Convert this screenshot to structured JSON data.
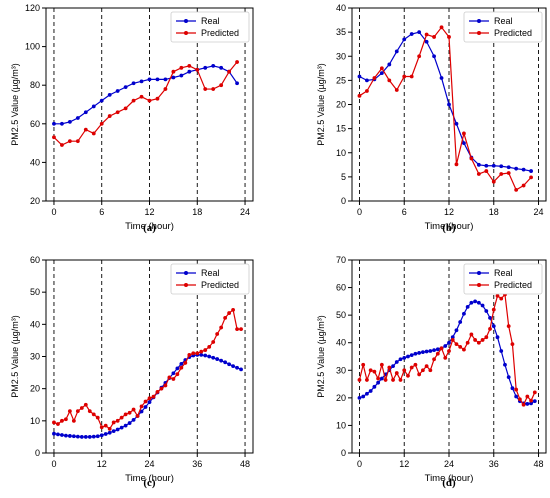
{
  "chart_data": [
    {
      "type": "line",
      "panel_label": "(a)",
      "xlabel": "Time (hour)",
      "ylabel": "PM2.5 Value (µg/m³)",
      "xlim": [
        -1,
        25
      ],
      "ylim": [
        20,
        120
      ],
      "xticks": [
        0,
        6,
        12,
        18,
        24
      ],
      "yticks": [
        20,
        40,
        60,
        80,
        100,
        120
      ],
      "vlines": [
        0,
        6,
        12,
        18,
        24
      ],
      "legend_position": "top-right",
      "series": [
        {
          "name": "Real",
          "color": "#0000cc",
          "x": [
            0,
            1,
            2,
            3,
            4,
            5,
            6,
            7,
            8,
            9,
            10,
            11,
            12,
            13,
            14,
            15,
            16,
            17,
            18,
            19,
            20,
            21,
            22,
            23
          ],
          "values": [
            60,
            60,
            61,
            63,
            66,
            69,
            72,
            75,
            77,
            79,
            81,
            82,
            83,
            83,
            83,
            84,
            85,
            87,
            88,
            89,
            90,
            89,
            87,
            81
          ]
        },
        {
          "name": "Predicted",
          "color": "#dd0000",
          "x": [
            0,
            1,
            2,
            3,
            4,
            5,
            6,
            7,
            8,
            9,
            10,
            11,
            12,
            13,
            14,
            15,
            16,
            17,
            18,
            19,
            20,
            21,
            22,
            23
          ],
          "values": [
            53,
            49,
            51,
            51,
            57,
            55,
            60,
            64,
            66,
            68,
            72,
            74,
            72,
            73,
            78,
            87,
            89,
            90,
            88,
            78,
            78,
            80,
            87,
            92
          ]
        }
      ]
    },
    {
      "type": "line",
      "panel_label": "(b)",
      "xlabel": "Time (hour)",
      "ylabel": "PM2.5 Value (µg/m³)",
      "xlim": [
        -1,
        25
      ],
      "ylim": [
        0,
        40
      ],
      "xticks": [
        0,
        6,
        12,
        18,
        24
      ],
      "yticks": [
        0,
        5,
        10,
        15,
        20,
        25,
        30,
        35,
        40
      ],
      "vlines": [
        0,
        6,
        12,
        18,
        24
      ],
      "legend_position": "top-right",
      "series": [
        {
          "name": "Real",
          "color": "#0000cc",
          "x": [
            0,
            1,
            2,
            3,
            4,
            5,
            6,
            7,
            8,
            9,
            10,
            11,
            12,
            13,
            14,
            15,
            16,
            17,
            18,
            19,
            20,
            21,
            22,
            23
          ],
          "values": [
            25.8,
            25,
            25.2,
            26.5,
            28.3,
            31,
            33.5,
            34.6,
            35,
            33,
            30,
            25.5,
            20,
            16,
            12,
            9,
            7.5,
            7.3,
            7.3,
            7.2,
            7,
            6.7,
            6.5,
            6.2
          ]
        },
        {
          "name": "Predicted",
          "color": "#dd0000",
          "x": [
            0,
            1,
            2,
            3,
            4,
            5,
            6,
            7,
            8,
            9,
            10,
            11,
            12,
            13,
            14,
            15,
            16,
            17,
            18,
            19,
            20,
            21,
            22,
            23
          ],
          "values": [
            21.8,
            22.8,
            25.5,
            27.5,
            25,
            23,
            25.8,
            25.8,
            30,
            34.5,
            34,
            36,
            34,
            7.6,
            14,
            8.8,
            5.6,
            6.2,
            4,
            5.6,
            5.8,
            2.3,
            3.2,
            4.9
          ]
        }
      ]
    },
    {
      "type": "line",
      "panel_label": "(c)",
      "xlabel": "Time (hour)",
      "ylabel": "PM2.5 Value (µg/m³)",
      "xlim": [
        -2,
        50
      ],
      "ylim": [
        0,
        60
      ],
      "xticks": [
        0,
        12,
        24,
        36,
        48
      ],
      "yticks": [
        0,
        10,
        20,
        30,
        40,
        50,
        60
      ],
      "vlines": [
        0,
        12,
        24,
        36,
        48
      ],
      "legend_position": "top-right",
      "series": [
        {
          "name": "Real",
          "color": "#0000cc",
          "x": [
            0,
            1,
            2,
            3,
            4,
            5,
            6,
            7,
            8,
            9,
            10,
            11,
            12,
            13,
            14,
            15,
            16,
            17,
            18,
            19,
            20,
            21,
            22,
            23,
            24,
            25,
            26,
            27,
            28,
            29,
            30,
            31,
            32,
            33,
            34,
            35,
            36,
            37,
            38,
            39,
            40,
            41,
            42,
            43,
            44,
            45,
            46,
            47
          ],
          "values": [
            6,
            5.8,
            5.6,
            5.4,
            5.3,
            5.2,
            5.1,
            5,
            5,
            5,
            5.1,
            5.2,
            5.5,
            5.9,
            6.3,
            6.8,
            7.3,
            7.9,
            8.5,
            9.3,
            10.3,
            11.5,
            12.9,
            14.3,
            15.8,
            17.3,
            18.8,
            20.3,
            21.8,
            23.3,
            24.8,
            26.3,
            27.7,
            28.9,
            29.8,
            30.3,
            30.5,
            30.5,
            30.3,
            30,
            29.6,
            29.2,
            28.7,
            28.2,
            27.6,
            27,
            26.5,
            26
          ]
        },
        {
          "name": "Predicted",
          "color": "#dd0000",
          "x": [
            0,
            1,
            2,
            3,
            4,
            5,
            6,
            7,
            8,
            9,
            10,
            11,
            12,
            13,
            14,
            15,
            16,
            17,
            18,
            19,
            20,
            21,
            22,
            23,
            24,
            25,
            26,
            27,
            28,
            29,
            30,
            31,
            32,
            33,
            34,
            35,
            36,
            37,
            38,
            39,
            40,
            41,
            42,
            43,
            44,
            45,
            46,
            47
          ],
          "values": [
            9.5,
            9,
            10,
            10.5,
            13,
            10,
            13,
            14,
            15,
            13,
            12,
            11,
            8,
            8.5,
            7.5,
            9.5,
            10,
            11,
            12,
            12.5,
            13.5,
            11.5,
            14.5,
            16,
            17,
            17.5,
            19,
            20,
            21,
            23.5,
            23,
            24.5,
            26.5,
            28,
            30.5,
            31,
            31,
            31.5,
            32,
            33,
            34.5,
            37,
            39,
            42,
            43.5,
            44.5,
            38.5,
            38.5
          ]
        }
      ]
    },
    {
      "type": "line",
      "panel_label": "(d)",
      "xlabel": "Time (hour)",
      "ylabel": "PM2.5 Value (µg/m³)",
      "xlim": [
        -2,
        50
      ],
      "ylim": [
        0,
        70
      ],
      "xticks": [
        0,
        12,
        24,
        36,
        48
      ],
      "yticks": [
        0,
        10,
        20,
        30,
        40,
        50,
        60,
        70
      ],
      "vlines": [
        0,
        12,
        24,
        36,
        48
      ],
      "legend_position": "top-right",
      "series": [
        {
          "name": "Real",
          "color": "#0000cc",
          "x": [
            0,
            1,
            2,
            3,
            4,
            5,
            6,
            7,
            8,
            9,
            10,
            11,
            12,
            13,
            14,
            15,
            16,
            17,
            18,
            19,
            20,
            21,
            22,
            23,
            24,
            25,
            26,
            27,
            28,
            29,
            30,
            31,
            32,
            33,
            34,
            35,
            36,
            37,
            38,
            39,
            40,
            41,
            42,
            43,
            44,
            45,
            46,
            47
          ],
          "values": [
            20,
            20.5,
            21.5,
            22.5,
            24,
            25.5,
            27,
            28.5,
            30,
            31.5,
            33,
            34,
            34.5,
            35,
            35.5,
            36,
            36.3,
            36.6,
            36.8,
            37,
            37.3,
            37.6,
            38,
            38.8,
            40,
            42,
            44.5,
            47.5,
            50.5,
            53,
            54.5,
            55,
            54.5,
            53.5,
            51.5,
            49,
            46,
            42,
            37,
            32,
            27.5,
            23.5,
            20.5,
            18.8,
            18,
            17.8,
            18,
            18.8
          ]
        },
        {
          "name": "Predicted",
          "color": "#dd0000",
          "x": [
            0,
            1,
            2,
            3,
            4,
            5,
            6,
            7,
            8,
            9,
            10,
            11,
            12,
            13,
            14,
            15,
            16,
            17,
            18,
            19,
            20,
            21,
            22,
            23,
            24,
            25,
            26,
            27,
            28,
            29,
            30,
            31,
            32,
            33,
            34,
            35,
            36,
            37,
            38,
            39,
            40,
            41,
            42,
            43,
            44,
            45,
            46,
            47
          ],
          "values": [
            26.5,
            32,
            26.5,
            30,
            29.5,
            27,
            32,
            26.5,
            31,
            26.5,
            29,
            26.5,
            30,
            28,
            31,
            32,
            28.5,
            30,
            31.5,
            30,
            34,
            36,
            38,
            34.5,
            37,
            41,
            39.5,
            38.5,
            37.5,
            40,
            43,
            41,
            40,
            41,
            42,
            45,
            52,
            57,
            56,
            57.5,
            46,
            39.5,
            23,
            19.5,
            17.5,
            20.5,
            19,
            22
          ]
        }
      ]
    }
  ]
}
